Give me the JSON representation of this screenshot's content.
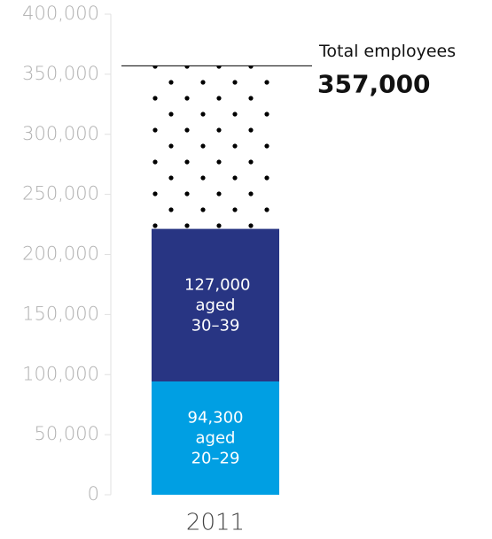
{
  "chart_data": {
    "type": "stacked_bar",
    "categories": [
      "2011"
    ],
    "series": [
      {
        "name": "aged 20–29",
        "color": "#009fe3",
        "values": [
          94300
        ],
        "value_labels": [
          "94,300"
        ]
      },
      {
        "name": "aged 30–39",
        "color": "#283583",
        "values": [
          127000
        ],
        "value_labels": [
          "127,000"
        ]
      },
      {
        "color": "dotted",
        "values": [
          135700
        ]
      }
    ],
    "annotation": {
      "text": "Total employees",
      "value": 357000,
      "label": "357,000"
    },
    "ylim": [
      0,
      400000
    ],
    "yticks": [
      0,
      {
        "value": 50000,
        "label": "50,000"
      },
      {
        "value": 100000,
        "label": "100,000"
      },
      {
        "value": 150000,
        "label": "150,000"
      },
      {
        "value": 200000,
        "label": "200,000"
      },
      {
        "value": 250000,
        "label": "250,000"
      },
      {
        "value": 300000,
        "label": "300,000"
      },
      {
        "value": 350000,
        "label": "350,000"
      },
      {
        "value": 400000,
        "label": "400,000"
      }
    ]
  }
}
